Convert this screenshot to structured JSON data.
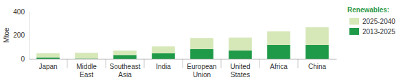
{
  "chart_data": {
    "type": "bar",
    "stacked": true,
    "y_label": "Mtoe",
    "legend_title": "Renewables:",
    "legend": "upper right",
    "categories": [
      "Japan",
      "Middle East",
      "Southeast Asia",
      "India",
      "European Union",
      "United States",
      "Africa",
      "China"
    ],
    "series": [
      {
        "name": "2013-2025",
        "color": "#1f9a48",
        "values": [
          10,
          3,
          30,
          46,
          82,
          70,
          116,
          116
        ]
      },
      {
        "name": "2025-2040",
        "color": "#d6e7b8",
        "values": [
          36,
          47,
          40,
          59,
          93,
          110,
          116,
          151
        ]
      }
    ],
    "ylim": [
      0,
      400
    ],
    "yticks": [
      0,
      200,
      400
    ],
    "grid": false
  }
}
